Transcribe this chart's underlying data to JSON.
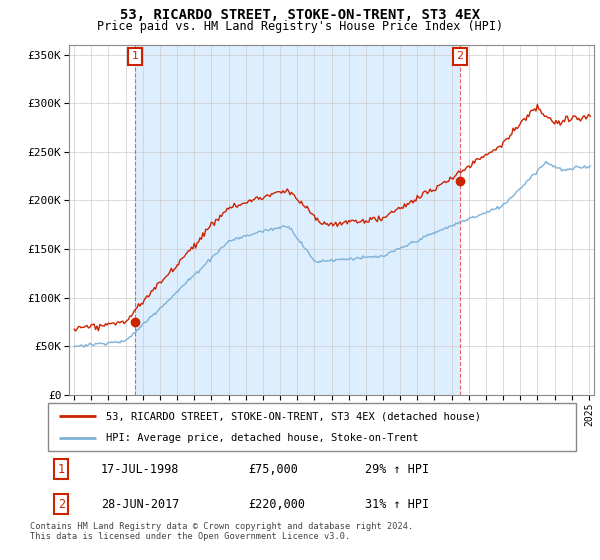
{
  "title": "53, RICARDO STREET, STOKE-ON-TRENT, ST3 4EX",
  "subtitle": "Price paid vs. HM Land Registry's House Price Index (HPI)",
  "ylabel_ticks": [
    "£0",
    "£50K",
    "£100K",
    "£150K",
    "£200K",
    "£250K",
    "£300K",
    "£350K"
  ],
  "ytick_values": [
    0,
    50000,
    100000,
    150000,
    200000,
    250000,
    300000,
    350000
  ],
  "ylim": [
    0,
    360000
  ],
  "xlim_start": 1994.7,
  "xlim_end": 2025.3,
  "sale1_year": 1998.54,
  "sale1_price": 75000,
  "sale2_year": 2017.49,
  "sale2_price": 220000,
  "red_color": "#cc2200",
  "blue_color": "#7fb2d8",
  "dashed_color": "#dd5555",
  "annotation_box_edgecolor": "#cc2200",
  "bg_band_color": "#ddeeff",
  "background_color": "#ffffff",
  "grid_color": "#cccccc",
  "legend1": "53, RICARDO STREET, STOKE-ON-TRENT, ST3 4EX (detached house)",
  "legend2": "HPI: Average price, detached house, Stoke-on-Trent",
  "footer": "Contains HM Land Registry data © Crown copyright and database right 2024.\nThis data is licensed under the Open Government Licence v3.0.",
  "table_rows": [
    {
      "num": "1",
      "date": "17-JUL-1998",
      "price": "£75,000",
      "pct": "29% ↑ HPI"
    },
    {
      "num": "2",
      "date": "28-JUN-2017",
      "price": "£220,000",
      "pct": "31% ↑ HPI"
    }
  ]
}
